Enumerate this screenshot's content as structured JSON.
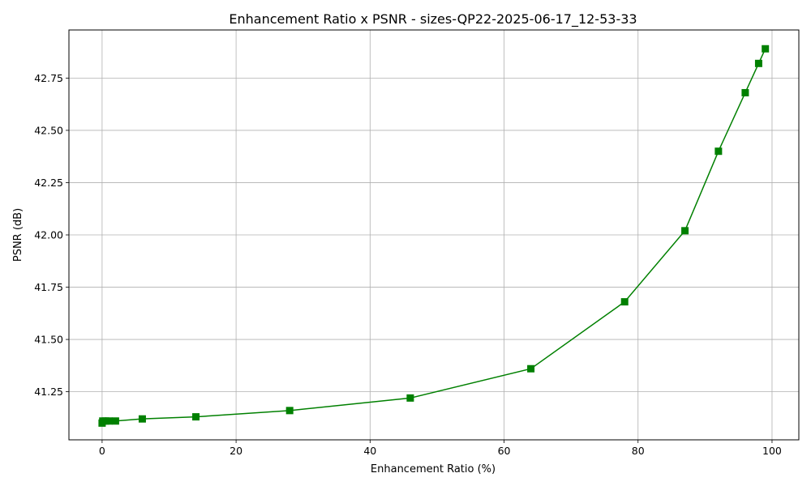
{
  "chart_data": {
    "type": "line",
    "title": "Enhancement Ratio x PSNR - sizes-QP22-2025-06-17_12-53-33",
    "xlabel": "Enhancement Ratio (%)",
    "ylabel": "PSNR (dB)",
    "xlim": [
      -4.95,
      104
    ],
    "ylim": [
      41.02,
      42.98
    ],
    "xticks": [
      0,
      20,
      40,
      60,
      80,
      100
    ],
    "xtick_labels": [
      "0",
      "20",
      "40",
      "60",
      "80",
      "100"
    ],
    "yticks": [
      41.25,
      41.5,
      41.75,
      42.0,
      42.25,
      42.5,
      42.75
    ],
    "ytick_labels": [
      "41.25",
      "41.50",
      "41.75",
      "42.00",
      "42.25",
      "42.50",
      "42.75"
    ],
    "grid": true,
    "series": [
      {
        "color": "#008000",
        "marker": "square",
        "x": [
          0,
          0.1,
          0.5,
          1,
          2,
          6,
          14,
          28,
          46,
          64,
          78,
          87,
          92,
          96,
          98,
          99
        ],
        "y": [
          41.1,
          41.11,
          41.11,
          41.11,
          41.11,
          41.12,
          41.13,
          41.16,
          41.22,
          41.36,
          41.68,
          42.02,
          42.4,
          42.68,
          42.82,
          42.89
        ]
      }
    ]
  }
}
